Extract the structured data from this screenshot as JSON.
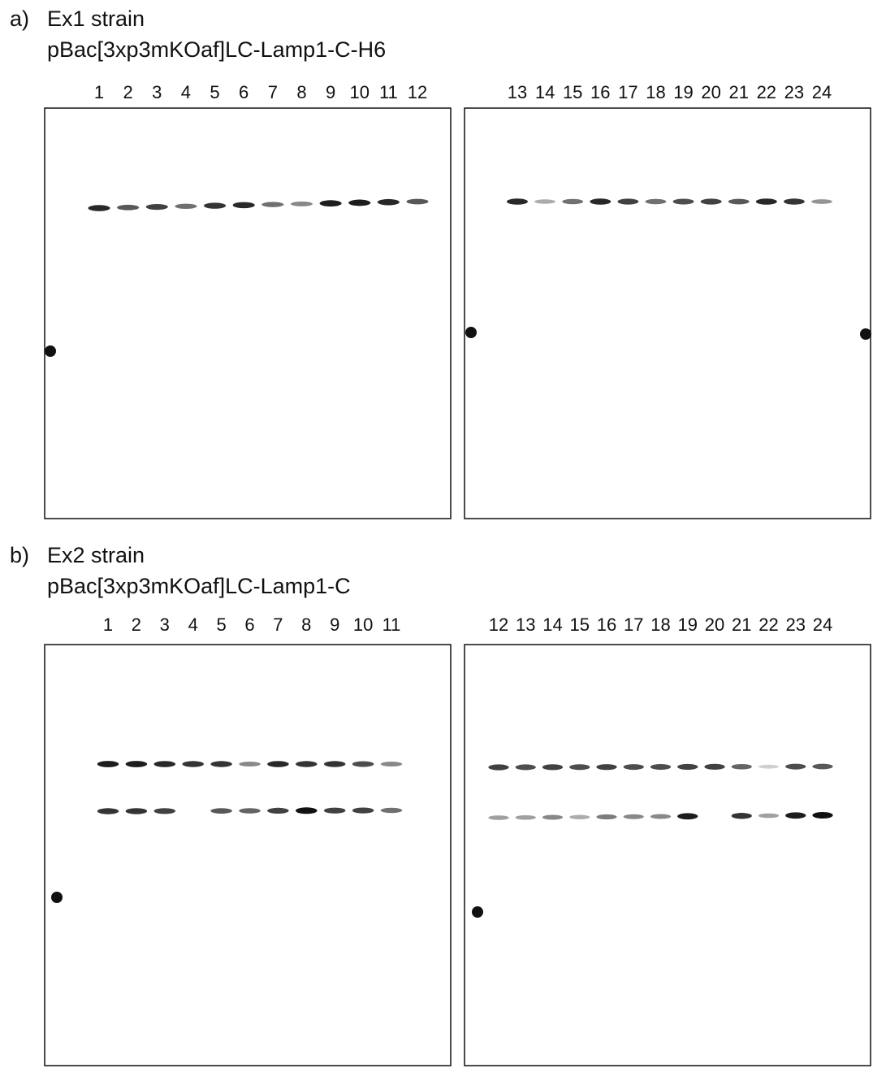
{
  "panels": [
    {
      "label": "a)",
      "strain": "Ex1 strain",
      "construct": "pBac[3xp3mKOaf]LC-Lamp1-C-H6",
      "blots": [
        {
          "lanes": [
            "1",
            "2",
            "3",
            "4",
            "5",
            "6",
            "7",
            "8",
            "9",
            "10",
            "11",
            "12"
          ]
        },
        {
          "lanes": [
            "13",
            "14",
            "15",
            "16",
            "17",
            "18",
            "19",
            "20",
            "21",
            "22",
            "23",
            "24"
          ]
        }
      ]
    },
    {
      "label": "b)",
      "strain": "Ex2 strain",
      "construct": "pBac[3xp3mKOaf]LC-Lamp1-C",
      "blots": [
        {
          "lanes": [
            "1",
            "2",
            "3",
            "4",
            "5",
            "6",
            "7",
            "8",
            "9",
            "10",
            "11"
          ]
        },
        {
          "lanes": [
            "12",
            "13",
            "14",
            "15",
            "16",
            "17",
            "18",
            "19",
            "20",
            "21",
            "22",
            "23",
            "24"
          ]
        }
      ]
    }
  ]
}
